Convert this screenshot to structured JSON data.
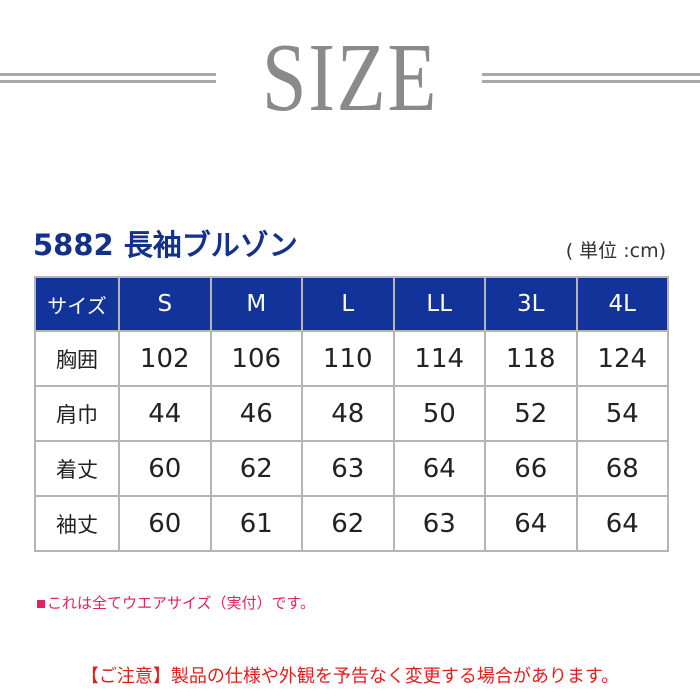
{
  "heading": "SIZE",
  "product_title": "5882 長袖ブルゾン",
  "unit": "( 単位 :cm)",
  "colors": {
    "header_bg": "#12349a",
    "title_blue": "#12308c",
    "note_red": "#e0245e"
  },
  "table": {
    "headers": [
      "サイズ",
      "S",
      "M",
      "L",
      "LL",
      "3L",
      "4L"
    ],
    "rows": [
      {
        "label": "胸囲",
        "values": [
          "102",
          "106",
          "110",
          "114",
          "118",
          "124"
        ]
      },
      {
        "label": "肩巾",
        "values": [
          "44",
          "46",
          "48",
          "50",
          "52",
          "54"
        ]
      },
      {
        "label": "着丈",
        "values": [
          "60",
          "62",
          "63",
          "64",
          "66",
          "68"
        ]
      },
      {
        "label": "袖丈",
        "values": [
          "60",
          "61",
          "62",
          "63",
          "64",
          "64"
        ]
      }
    ]
  },
  "note": "これは全てウエアサイズ（実付）です。",
  "caution": "【ご注意】製品の仕様や外観を予告なく変更する場合があります。"
}
